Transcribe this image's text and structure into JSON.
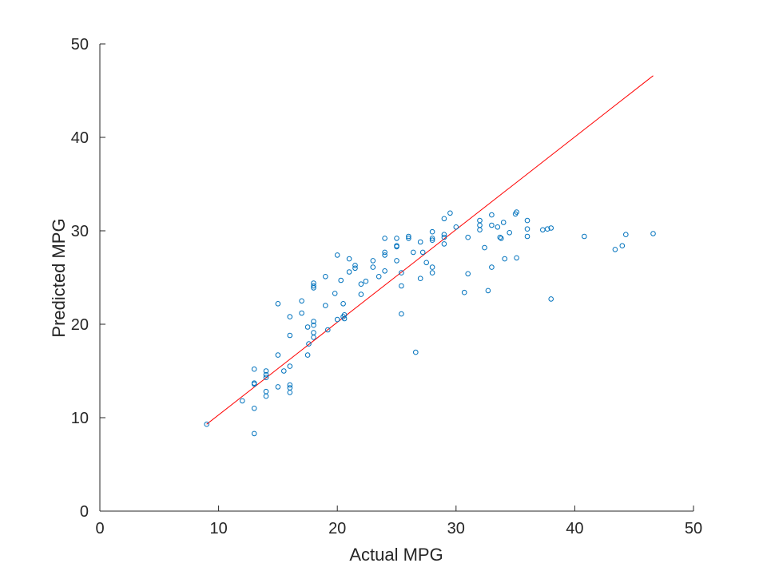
{
  "chart_data": {
    "type": "scatter",
    "title": "",
    "xlabel": "Actual MPG",
    "ylabel": "Predicted MPG",
    "xlim": [
      0,
      50
    ],
    "ylim": [
      0,
      50
    ],
    "xticks": [
      "0",
      "10",
      "20",
      "30",
      "40",
      "50"
    ],
    "yticks": [
      "0",
      "10",
      "20",
      "30",
      "40",
      "50"
    ],
    "grid": false,
    "legend": "none",
    "series": [
      {
        "marker": "circle-open",
        "color": "#0072bd",
        "points": [
          [
            9.0,
            9.3
          ],
          [
            12.0,
            11.8
          ],
          [
            13.0,
            15.2
          ],
          [
            13.0,
            13.7
          ],
          [
            13.0,
            13.6
          ],
          [
            13.0,
            11.0
          ],
          [
            13.0,
            8.3
          ],
          [
            14.0,
            15.0
          ],
          [
            14.0,
            14.6
          ],
          [
            14.0,
            14.3
          ],
          [
            14.0,
            12.8
          ],
          [
            14.0,
            12.3
          ],
          [
            15.0,
            22.2
          ],
          [
            15.0,
            16.7
          ],
          [
            15.0,
            13.3
          ],
          [
            15.5,
            15.0
          ],
          [
            16.0,
            20.8
          ],
          [
            16.0,
            18.8
          ],
          [
            16.0,
            15.5
          ],
          [
            16.0,
            13.5
          ],
          [
            16.0,
            13.2
          ],
          [
            16.0,
            12.7
          ],
          [
            17.0,
            22.5
          ],
          [
            17.0,
            21.2
          ],
          [
            17.5,
            19.7
          ],
          [
            17.5,
            16.7
          ],
          [
            17.6,
            17.9
          ],
          [
            18.0,
            24.4
          ],
          [
            18.0,
            24.1
          ],
          [
            18.0,
            23.9
          ],
          [
            18.0,
            20.3
          ],
          [
            18.0,
            19.9
          ],
          [
            18.0,
            19.1
          ],
          [
            18.0,
            18.6
          ],
          [
            19.0,
            25.1
          ],
          [
            19.0,
            22.0
          ],
          [
            19.2,
            19.4
          ],
          [
            19.8,
            23.3
          ],
          [
            20.0,
            27.4
          ],
          [
            20.0,
            20.5
          ],
          [
            20.3,
            24.7
          ],
          [
            20.5,
            22.2
          ],
          [
            20.5,
            20.8
          ],
          [
            20.6,
            20.6
          ],
          [
            20.6,
            21.0
          ],
          [
            21.0,
            27.0
          ],
          [
            21.0,
            25.6
          ],
          [
            21.5,
            26.3
          ],
          [
            21.5,
            26.0
          ],
          [
            22.0,
            24.3
          ],
          [
            22.0,
            23.2
          ],
          [
            22.4,
            24.6
          ],
          [
            23.0,
            26.8
          ],
          [
            23.0,
            26.1
          ],
          [
            23.5,
            25.1
          ],
          [
            24.0,
            29.2
          ],
          [
            24.0,
            27.7
          ],
          [
            24.0,
            27.4
          ],
          [
            24.0,
            25.7
          ],
          [
            25.0,
            29.2
          ],
          [
            25.0,
            28.4
          ],
          [
            25.0,
            28.3
          ],
          [
            25.0,
            26.8
          ],
          [
            25.4,
            25.5
          ],
          [
            25.4,
            24.1
          ],
          [
            25.4,
            21.1
          ],
          [
            26.0,
            29.4
          ],
          [
            26.0,
            29.2
          ],
          [
            26.4,
            27.7
          ],
          [
            26.6,
            17.0
          ],
          [
            27.0,
            28.8
          ],
          [
            27.0,
            24.9
          ],
          [
            27.2,
            27.7
          ],
          [
            27.5,
            26.6
          ],
          [
            28.0,
            29.9
          ],
          [
            28.0,
            29.2
          ],
          [
            28.0,
            29.0
          ],
          [
            28.0,
            26.1
          ],
          [
            28.0,
            25.5
          ],
          [
            29.0,
            31.3
          ],
          [
            29.0,
            29.6
          ],
          [
            29.0,
            29.3
          ],
          [
            29.0,
            28.6
          ],
          [
            29.5,
            31.9
          ],
          [
            30.0,
            30.4
          ],
          [
            30.7,
            23.4
          ],
          [
            31.0,
            29.3
          ],
          [
            31.0,
            25.4
          ],
          [
            32.0,
            31.1
          ],
          [
            32.0,
            30.6
          ],
          [
            32.0,
            30.1
          ],
          [
            32.4,
            28.2
          ],
          [
            32.7,
            23.6
          ],
          [
            33.0,
            31.7
          ],
          [
            33.0,
            30.6
          ],
          [
            33.0,
            26.1
          ],
          [
            33.5,
            30.4
          ],
          [
            33.7,
            29.3
          ],
          [
            33.8,
            29.2
          ],
          [
            34.0,
            30.9
          ],
          [
            34.1,
            27.0
          ],
          [
            34.5,
            29.8
          ],
          [
            35.0,
            31.8
          ],
          [
            35.1,
            32.0
          ],
          [
            35.1,
            27.1
          ],
          [
            36.0,
            31.1
          ],
          [
            36.0,
            30.2
          ],
          [
            36.0,
            29.4
          ],
          [
            37.3,
            30.1
          ],
          [
            37.7,
            30.2
          ],
          [
            38.0,
            30.3
          ],
          [
            38.0,
            22.7
          ],
          [
            40.8,
            29.4
          ],
          [
            43.4,
            28.0
          ],
          [
            44.0,
            28.4
          ],
          [
            44.3,
            29.6
          ],
          [
            46.6,
            29.7
          ]
        ]
      },
      {
        "marker": "line",
        "color": "#ff0000",
        "points": [
          [
            9.0,
            9.3
          ],
          [
            46.6,
            46.6
          ]
        ]
      }
    ]
  }
}
